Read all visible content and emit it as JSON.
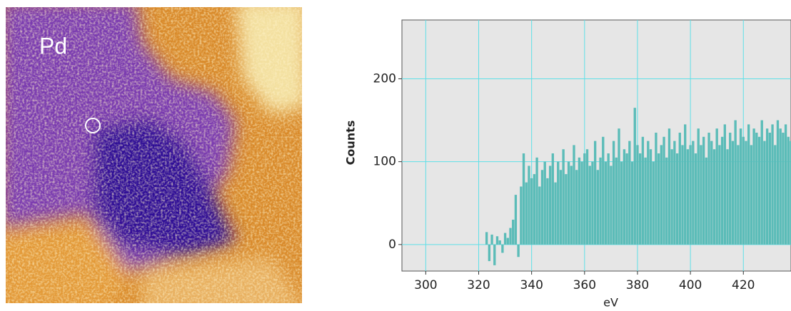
{
  "image": {
    "label": "Pd"
  },
  "chart_data": {
    "type": "bar",
    "xlabel": "eV",
    "ylabel": "Counts",
    "color": "#5bbcb8",
    "grid": true,
    "grid_color": "#5ee0e8",
    "background": "#e6e6e6",
    "xlim": [
      291,
      438
    ],
    "ylim": [
      -32,
      271
    ],
    "xticks": [
      300,
      320,
      340,
      360,
      380,
      400,
      420
    ],
    "yticks": [
      0,
      100,
      200
    ],
    "x": [
      323,
      324,
      325,
      326,
      327,
      328,
      329,
      330,
      331,
      332,
      333,
      334,
      335,
      336,
      337,
      338,
      339,
      340,
      341,
      342,
      343,
      344,
      345,
      346,
      347,
      348,
      349,
      350,
      351,
      352,
      353,
      354,
      355,
      356,
      357,
      358,
      359,
      360,
      361,
      362,
      363,
      364,
      365,
      366,
      367,
      368,
      369,
      370,
      371,
      372,
      373,
      374,
      375,
      376,
      377,
      378,
      379,
      380,
      381,
      382,
      383,
      384,
      385,
      386,
      387,
      388,
      389,
      390,
      391,
      392,
      393,
      394,
      395,
      396,
      397,
      398,
      399,
      400,
      401,
      402,
      403,
      404,
      405,
      406,
      407,
      408,
      409,
      410,
      411,
      412,
      413,
      414,
      415,
      416,
      417,
      418,
      419,
      420,
      421,
      422,
      423,
      424,
      425,
      426,
      427,
      428,
      429,
      430,
      431,
      432,
      433,
      434,
      435,
      436,
      437,
      438
    ],
    "values": [
      15,
      -20,
      12,
      -25,
      10,
      5,
      -10,
      14,
      8,
      20,
      30,
      60,
      -15,
      70,
      110,
      75,
      95,
      80,
      85,
      105,
      70,
      90,
      100,
      80,
      95,
      110,
      75,
      100,
      90,
      115,
      85,
      100,
      95,
      120,
      90,
      105,
      100,
      110,
      115,
      95,
      100,
      125,
      90,
      105,
      130,
      100,
      110,
      95,
      125,
      105,
      140,
      100,
      115,
      110,
      125,
      100,
      165,
      120,
      110,
      130,
      105,
      125,
      115,
      100,
      135,
      110,
      120,
      130,
      105,
      140,
      115,
      125,
      110,
      135,
      120,
      145,
      115,
      120,
      125,
      110,
      140,
      120,
      130,
      105,
      135,
      125,
      115,
      140,
      120,
      130,
      145,
      115,
      135,
      125,
      150,
      120,
      140,
      130,
      125,
      145,
      120,
      140,
      135,
      130,
      150,
      125,
      140,
      135,
      145,
      120,
      150,
      140,
      135,
      145,
      130,
      125
    ]
  }
}
